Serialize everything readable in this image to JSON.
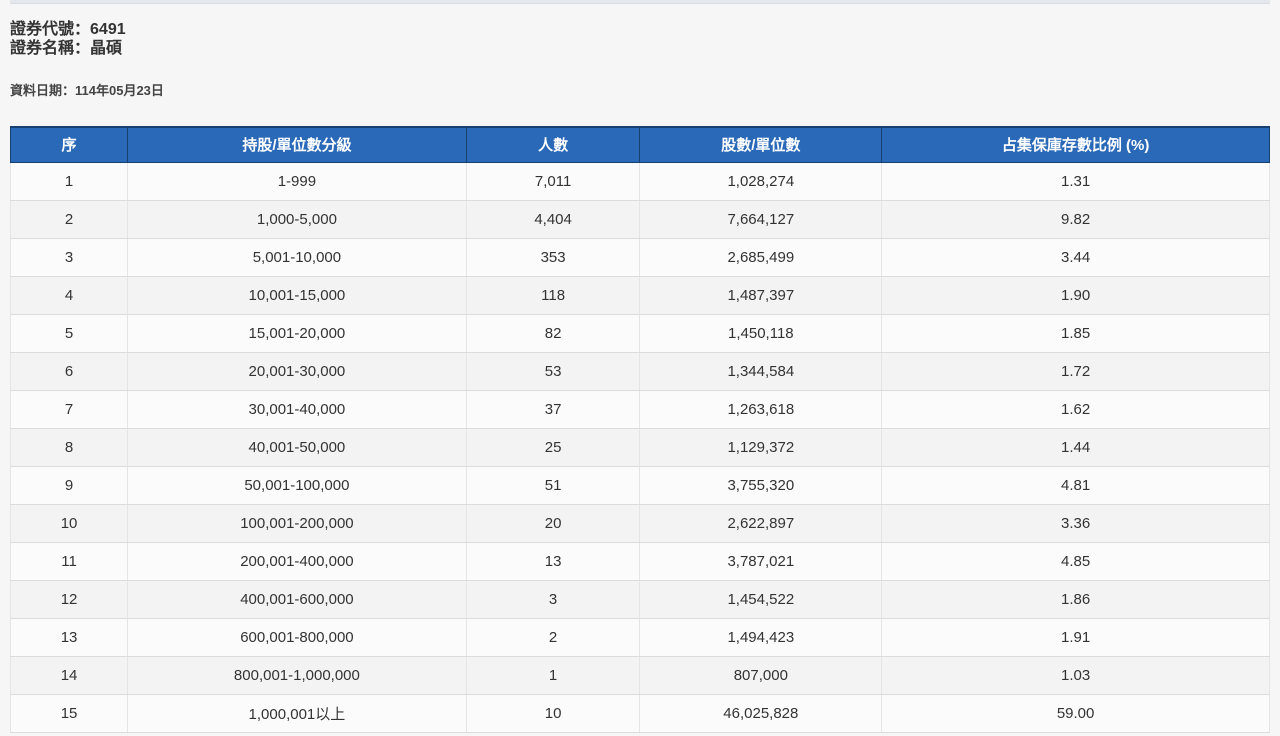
{
  "colors": {
    "header_bg": "#2a69b8",
    "header_border": "#17406e",
    "row_odd": "#fbfbfb",
    "row_even": "#f3f3f3",
    "text_dark": "#333333",
    "page_bg": "#f6f6f6"
  },
  "header": {
    "code_label": "證券代號：",
    "code_value": "6491",
    "name_label": "證券名稱：",
    "name_value": "晶碩",
    "date_label": "資料日期：",
    "date_value": "114年05月23日"
  },
  "table": {
    "columns": [
      "序",
      "持股/單位數分級",
      "人數",
      "股數/單位數",
      "占集保庫存數比例 (%)"
    ],
    "rows": [
      [
        "1",
        "1-999",
        "7,011",
        "1,028,274",
        "1.31"
      ],
      [
        "2",
        "1,000-5,000",
        "4,404",
        "7,664,127",
        "9.82"
      ],
      [
        "3",
        "5,001-10,000",
        "353",
        "2,685,499",
        "3.44"
      ],
      [
        "4",
        "10,001-15,000",
        "118",
        "1,487,397",
        "1.90"
      ],
      [
        "5",
        "15,001-20,000",
        "82",
        "1,450,118",
        "1.85"
      ],
      [
        "6",
        "20,001-30,000",
        "53",
        "1,344,584",
        "1.72"
      ],
      [
        "7",
        "30,001-40,000",
        "37",
        "1,263,618",
        "1.62"
      ],
      [
        "8",
        "40,001-50,000",
        "25",
        "1,129,372",
        "1.44"
      ],
      [
        "9",
        "50,001-100,000",
        "51",
        "3,755,320",
        "4.81"
      ],
      [
        "10",
        "100,001-200,000",
        "20",
        "2,622,897",
        "3.36"
      ],
      [
        "11",
        "200,001-400,000",
        "13",
        "3,787,021",
        "4.85"
      ],
      [
        "12",
        "400,001-600,000",
        "3",
        "1,454,522",
        "1.86"
      ],
      [
        "13",
        "600,001-800,000",
        "2",
        "1,494,423",
        "1.91"
      ],
      [
        "14",
        "800,001-1,000,000",
        "1",
        "807,000",
        "1.03"
      ],
      [
        "15",
        "1,000,001以上",
        "10",
        "46,025,828",
        "59.00"
      ]
    ]
  }
}
